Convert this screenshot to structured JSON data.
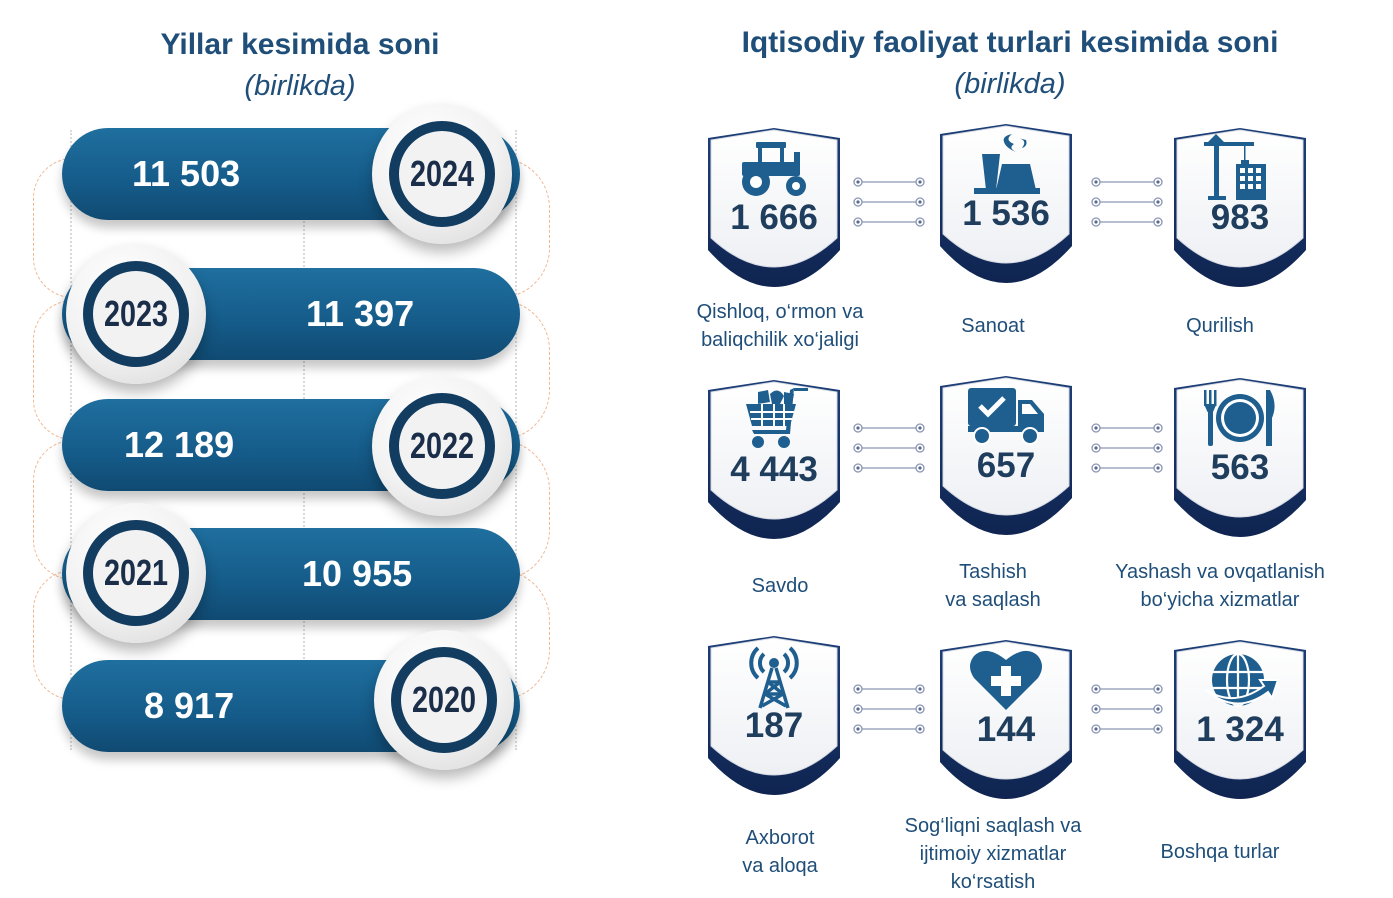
{
  "years_section": {
    "title": "Yillar kesimida soni",
    "subtitle": "(birlikda)",
    "items": [
      {
        "year": "2024",
        "value": "11 503"
      },
      {
        "year": "2023",
        "value": "11 397"
      },
      {
        "year": "2022",
        "value": "12 189"
      },
      {
        "year": "2021",
        "value": "10 955"
      },
      {
        "year": "2020",
        "value": "8 917"
      }
    ]
  },
  "activities_section": {
    "title": "Iqtisodiy faoliyat turlari kesimida soni",
    "subtitle": "(birlikda)",
    "items": [
      {
        "icon": "tractor-icon",
        "value": "1 666",
        "label_lines": [
          "Qishloq, o‘rmon va",
          "baliqchilik xo‘jaligi"
        ]
      },
      {
        "icon": "factory-icon",
        "value": "1 536",
        "label_lines": [
          "Sanoat"
        ]
      },
      {
        "icon": "construction-crane-icon",
        "value": "983",
        "label_lines": [
          "Qurilish"
        ]
      },
      {
        "icon": "shopping-cart-icon",
        "value": "4 443",
        "label_lines": [
          "Savdo"
        ]
      },
      {
        "icon": "delivery-truck-icon",
        "value": "657",
        "label_lines": [
          "Tashish",
          "va saqlash"
        ]
      },
      {
        "icon": "plate-cutlery-icon",
        "value": "563",
        "label_lines": [
          "Yashash va ovqatlanish",
          "bo‘yicha xizmatlar"
        ]
      },
      {
        "icon": "antenna-tower-icon",
        "value": "187",
        "label_lines": [
          "Axborot",
          "va aloqa"
        ]
      },
      {
        "icon": "heart-cross-icon",
        "value": "144",
        "label_lines": [
          "Sog‘liqni saqlash va",
          "ijtimoiy xizmatlar",
          "ko‘rsatish"
        ]
      },
      {
        "icon": "globe-arrow-icon",
        "value": "1 324",
        "label_lines": [
          "Boshqa turlar"
        ]
      }
    ]
  },
  "colors": {
    "primary_blue": "#1f6f9f",
    "dark_navy": "#123c60",
    "title_blue": "#1f4e79",
    "icon_blue": "#1f5f8f",
    "arc_orange": "#f1b690"
  }
}
